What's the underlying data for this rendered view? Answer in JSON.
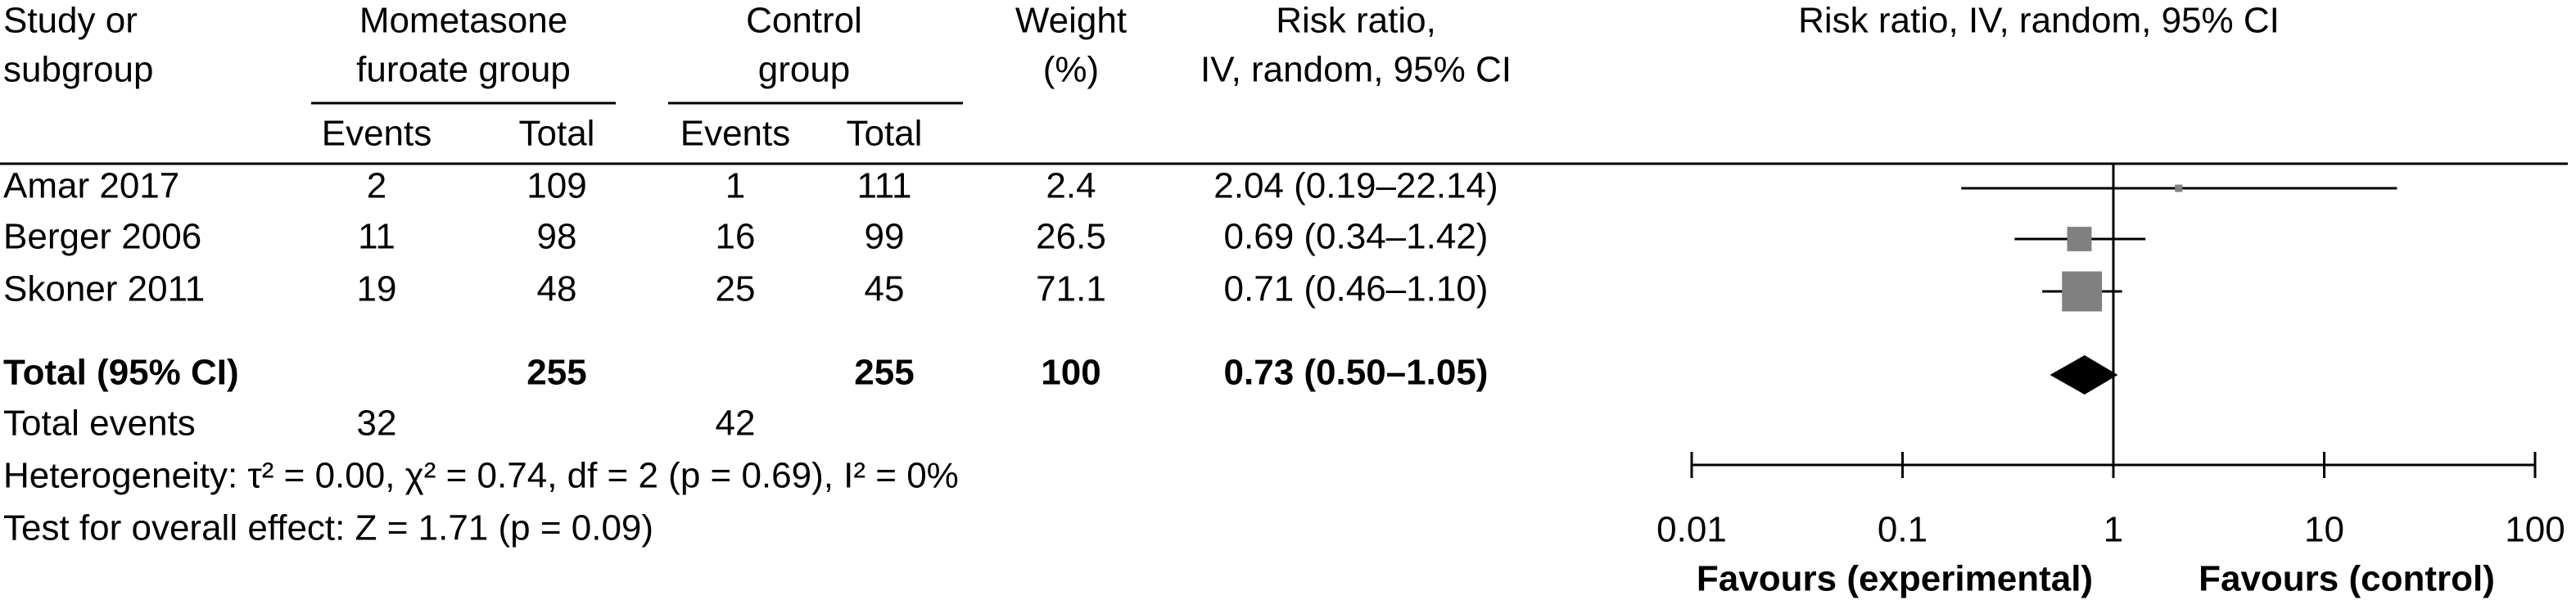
{
  "chart_data": {
    "type": "forest",
    "study_header": [
      "Study or",
      "subgroup"
    ],
    "group1_header": [
      "Mometasone",
      "furoate group"
    ],
    "group2_header": [
      "Control",
      "group"
    ],
    "sub_headers": [
      "Events",
      "Total",
      "Events",
      "Total"
    ],
    "weight_header": [
      "Weight",
      "(%)"
    ],
    "rr_header": [
      "Risk ratio,",
      "IV, random, 95% CI"
    ],
    "plot_header": "Risk ratio, IV, random, 95% CI",
    "studies": [
      {
        "name": "Amar 2017",
        "events1": 2,
        "total1": 109,
        "events2": 1,
        "total2": 111,
        "weight": 2.4,
        "rr": 2.04,
        "ci": [
          0.19,
          22.14
        ],
        "label": "2.04 (0.19–22.14)"
      },
      {
        "name": "Berger 2006",
        "events1": 11,
        "total1": 98,
        "events2": 16,
        "total2": 99,
        "weight": 26.5,
        "rr": 0.69,
        "ci": [
          0.34,
          1.42
        ],
        "label": "0.69 (0.34–1.42)"
      },
      {
        "name": "Skoner 2011",
        "events1": 19,
        "total1": 48,
        "events2": 25,
        "total2": 45,
        "weight": 71.1,
        "rr": 0.71,
        "ci": [
          0.46,
          1.1
        ],
        "label": "0.71 (0.46–1.10)"
      }
    ],
    "total": {
      "name": "Total (95% CI)",
      "total1": 255,
      "total2": 255,
      "weight": 100,
      "rr": 0.73,
      "ci": [
        0.5,
        1.05
      ],
      "label": "0.73 (0.50–1.05)"
    },
    "total_events": {
      "name": "Total events",
      "events1": 32,
      "events2": 42
    },
    "heterogeneity": "Heterogeneity: τ² = 0.00, χ² = 0.74, df = 2 (p = 0.69), I² = 0%",
    "overall_effect": "Test for overall effect: Z = 1.71 (p = 0.09)",
    "xlim": [
      0.01,
      100
    ],
    "xticks": [
      0.01,
      0.1,
      1,
      10,
      100
    ],
    "log_x": true,
    "xlabel_left": "Favours (experimental)",
    "xlabel_right": "Favours (control)",
    "square_color": "#808080",
    "diamond_color": "#000000"
  }
}
